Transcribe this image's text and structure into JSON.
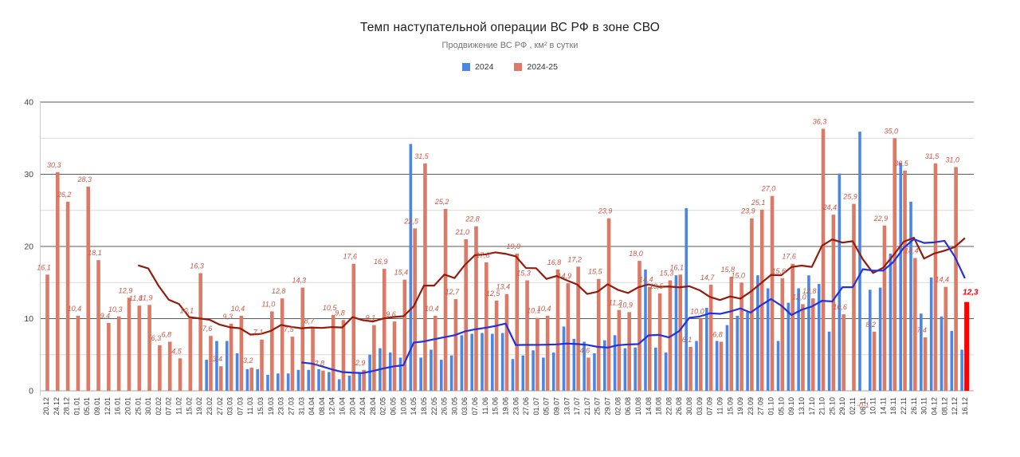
{
  "title": "Темп наступательной операции ВС РФ в зоне СВО",
  "subtitle": "Продвижение ВС РФ , км² в сутки",
  "legend": [
    {
      "label": "2024",
      "color": "#4a86e8"
    },
    {
      "label": "2024-25",
      "color": "#dd7a66"
    }
  ],
  "colors": {
    "bar_2024": "#4a86e8",
    "bar_2024_25": "#dd7a66",
    "bar_highlight": "#ff0000",
    "trend_2024": "#2233dd",
    "trend_2024_25": "#941c0c",
    "value_label": "#cb5744",
    "value_label_highlight": "#f0000e",
    "axis_text": "#383838",
    "grid_major": "#5b5b5b",
    "grid_minor": "#d9d9d9",
    "axis_line": "#a6a6a6"
  },
  "chart_data": {
    "type": "bar",
    "title": "Темп наступательной операции ВС РФ в зоне СВО",
    "subtitle": "Продвижение ВС РФ , км² в сутки",
    "legend_position": "top",
    "grid": true,
    "ylim": [
      0,
      40
    ],
    "yticks": [
      0,
      10,
      20,
      30,
      40
    ],
    "yticks_minor": [
      5,
      15,
      25,
      35
    ],
    "x_label_rotation": -90,
    "trend_note": "both lines are trailing 10-point moving averages of the bar series",
    "highlight_last_bar": {
      "category": "16.12",
      "value": 12.3,
      "label": "12,3"
    },
    "negative_label": {
      "category": "06.11",
      "label": "-0,1"
    },
    "categories": [
      "20.12",
      "24.12",
      "28.12",
      "01.01",
      "05.01",
      "09.01",
      "12.01",
      "16.01",
      "20.01",
      "25.01",
      "30.01",
      "02.02",
      "07.02",
      "11.02",
      "15.02",
      "19.02",
      "23.02",
      "27.02",
      "03.03",
      "07.03",
      "11.03",
      "15.03",
      "19.03",
      "23.03",
      "27.03",
      "31.03",
      "04.04",
      "08.04",
      "12.04",
      "16.04",
      "20.04",
      "24.04",
      "28.04",
      "02.05",
      "06.05",
      "10.05",
      "14.05",
      "18.05",
      "22.05",
      "26.05",
      "30.05",
      "03.06",
      "07.06",
      "11.06",
      "15.06",
      "19.06",
      "23.06",
      "27.06",
      "01.07",
      "05.07",
      "09.07",
      "13.07",
      "17.07",
      "21.07",
      "25.07",
      "29.07",
      "02.08",
      "06.08",
      "10.08",
      "14.08",
      "18.08",
      "22.08",
      "26.08",
      "30.08",
      "03.09",
      "07.09",
      "11.09",
      "15.09",
      "19.09",
      "23.09",
      "27.09",
      "01.10",
      "05.10",
      "09.10",
      "13.10",
      "17.10",
      "21.10",
      "25.10",
      "29.10",
      "02.11",
      "06.11",
      "10.11",
      "14.11",
      "18.11",
      "22.11",
      "26.11",
      "30.11",
      "04.12",
      "08.12",
      "12.12",
      "16.12"
    ],
    "series": [
      {
        "name": "2024",
        "labeled": false,
        "values": [
          null,
          null,
          null,
          null,
          null,
          null,
          null,
          null,
          null,
          null,
          null,
          null,
          null,
          null,
          null,
          null,
          4.3,
          6.9,
          6.9,
          5.2,
          3.0,
          3.0,
          2.2,
          2.4,
          2.4,
          2.9,
          2.9,
          3.0,
          2.6,
          1.6,
          2.1,
          2.5,
          5.0,
          5.9,
          5.3,
          4.6,
          34.2,
          4.6,
          5.7,
          4.3,
          4.9,
          7.7,
          7.9,
          8.0,
          7.9,
          8.0,
          4.4,
          4.9,
          5.6,
          4.6,
          5.3,
          8.9,
          7.2,
          6.8,
          5.2,
          7.0,
          7.7,
          5.9,
          6.0,
          16.8,
          6.0,
          5.3,
          16.0,
          25.3,
          6.9,
          11.5,
          6.9,
          9.1,
          10.4,
          10.9,
          16.0,
          14.2,
          6.9,
          12.2,
          14.2,
          16.0,
          14.8,
          8.2,
          30.1,
          null,
          35.9,
          14.0,
          14.3,
          19.0,
          31.6,
          26.2,
          10.7,
          15.7,
          10.3,
          8.3,
          5.7
        ]
      },
      {
        "name": "2024-25",
        "labeled": true,
        "values": [
          16.1,
          30.3,
          26.2,
          10.4,
          28.3,
          18.1,
          9.4,
          10.3,
          12.9,
          11.8,
          11.9,
          6.3,
          6.8,
          4.5,
          10.1,
          16.3,
          7.6,
          3.4,
          9.3,
          10.4,
          3.2,
          7.1,
          11.0,
          12.8,
          7.5,
          14.3,
          8.7,
          2.8,
          10.5,
          9.8,
          17.6,
          2.9,
          9.1,
          16.9,
          9.6,
          15.4,
          22.5,
          31.5,
          10.4,
          25.2,
          12.7,
          21.0,
          22.8,
          17.8,
          12.5,
          13.4,
          19.0,
          15.3,
          10.1,
          10.4,
          16.8,
          14.9,
          17.2,
          4.6,
          15.5,
          23.9,
          11.2,
          10.9,
          18.0,
          14.4,
          13.5,
          15.3,
          16.1,
          6.1,
          10.0,
          14.7,
          6.8,
          15.8,
          15.0,
          23.9,
          25.1,
          27.0,
          15.6,
          17.6,
          12.0,
          12.8,
          36.3,
          24.4,
          10.6,
          25.9,
          -0.1,
          8.2,
          22.9,
          35.0,
          30.5,
          18.4,
          7.4,
          31.5,
          14.4,
          31.0,
          12.3
        ]
      }
    ]
  }
}
